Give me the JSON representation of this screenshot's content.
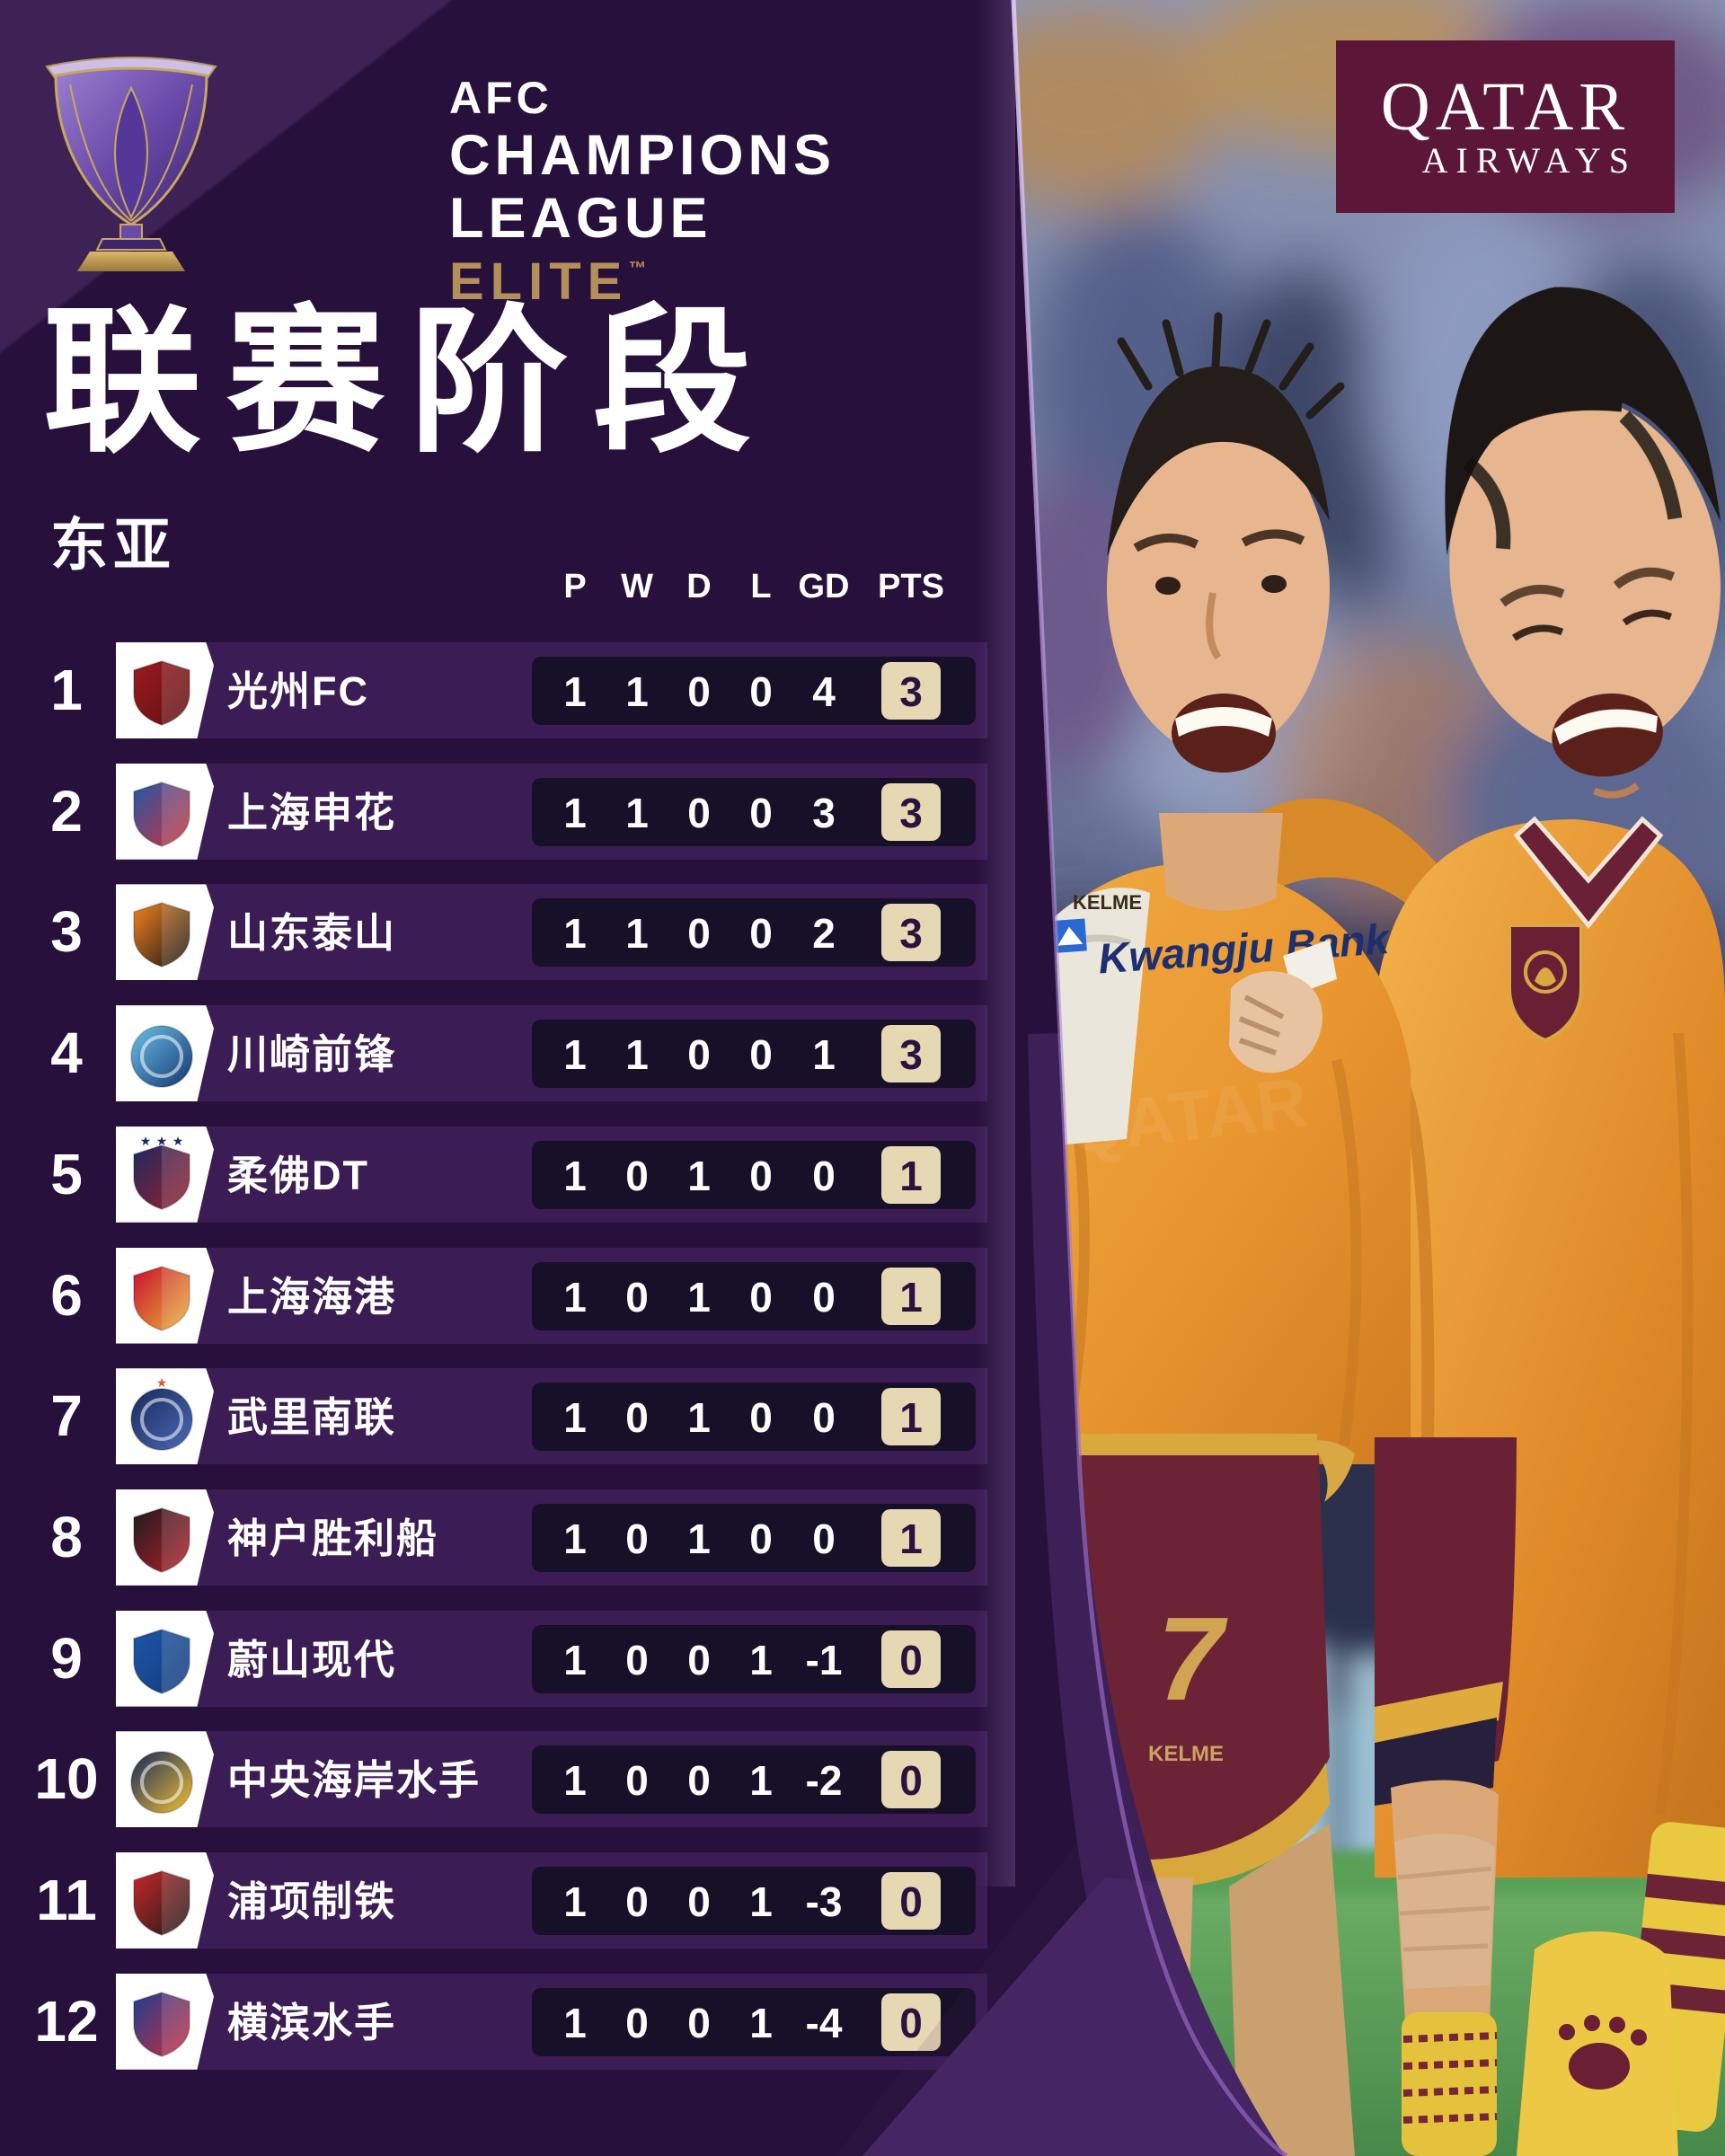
{
  "brand": {
    "line1": "AFC",
    "line2": "CHAMPIONS",
    "line3": "LEAGUE",
    "tier": "ELITE",
    "tm": "™",
    "gold": "#B3905A"
  },
  "page": {
    "title": "联赛阶段",
    "region": "东亚"
  },
  "sponsor": {
    "line1": "QATAR",
    "line2": "AIRWAYS",
    "brand_color": "#5C1638"
  },
  "table": {
    "columns": {
      "p": "P",
      "w": "W",
      "d": "D",
      "l": "L",
      "gd": "GD",
      "pts": "PTS"
    },
    "rows": [
      {
        "rank": "1",
        "club": "光州FC",
        "p": "1",
        "w": "1",
        "d": "0",
        "l": "0",
        "gd": "4",
        "pts": "3",
        "shape": "shield",
        "crest": [
          "#9b1c20",
          "#5e1013"
        ],
        "stars": 0,
        "star_color": ""
      },
      {
        "rank": "2",
        "club": "上海申花",
        "p": "1",
        "w": "1",
        "d": "0",
        "l": "0",
        "gd": "3",
        "pts": "3",
        "shape": "shield",
        "crest": [
          "#2457a8",
          "#cf3339"
        ],
        "stars": 0,
        "star_color": ""
      },
      {
        "rank": "3",
        "club": "山东泰山",
        "p": "1",
        "w": "1",
        "d": "0",
        "l": "0",
        "gd": "2",
        "pts": "3",
        "shape": "shield",
        "crest": [
          "#f28321",
          "#141414"
        ],
        "stars": 0,
        "star_color": ""
      },
      {
        "rank": "4",
        "club": "川崎前锋",
        "p": "1",
        "w": "1",
        "d": "0",
        "l": "0",
        "gd": "1",
        "pts": "3",
        "shape": "circle",
        "crest": [
          "#6cc0e8",
          "#12366e"
        ],
        "stars": 0,
        "star_color": ""
      },
      {
        "rank": "5",
        "club": "柔佛DT",
        "p": "1",
        "w": "0",
        "d": "1",
        "l": "0",
        "gd": "0",
        "pts": "1",
        "shape": "shield",
        "crest": [
          "#1b2960",
          "#9d1f2d"
        ],
        "stars": 3,
        "star_color": "#1b2960"
      },
      {
        "rank": "6",
        "club": "上海海港",
        "p": "1",
        "w": "0",
        "d": "1",
        "l": "0",
        "gd": "0",
        "pts": "1",
        "shape": "shield",
        "crest": [
          "#c8102e",
          "#eab53a"
        ],
        "stars": 0,
        "star_color": ""
      },
      {
        "rank": "7",
        "club": "武里南联",
        "p": "1",
        "w": "0",
        "d": "1",
        "l": "0",
        "gd": "0",
        "pts": "1",
        "shape": "circle",
        "crest": [
          "#1a2a5c",
          "#4a6ab8"
        ],
        "stars": 1,
        "star_color": "#e8542a"
      },
      {
        "rank": "8",
        "club": "神户胜利船",
        "p": "1",
        "w": "0",
        "d": "1",
        "l": "0",
        "gd": "0",
        "pts": "1",
        "shape": "shield",
        "crest": [
          "#1d1d1d",
          "#b51e2c"
        ],
        "stars": 0,
        "star_color": ""
      },
      {
        "rank": "9",
        "club": "蔚山现代",
        "p": "1",
        "w": "0",
        "d": "0",
        "l": "1",
        "gd": "-1",
        "pts": "0",
        "shape": "shield",
        "crest": [
          "#1e56a8",
          "#123a7a"
        ],
        "stars": 0,
        "star_color": ""
      },
      {
        "rank": "10",
        "club": "中央海岸水手",
        "p": "1",
        "w": "0",
        "d": "0",
        "l": "1",
        "gd": "-2",
        "pts": "0",
        "shape": "circle",
        "crest": [
          "#14275e",
          "#f2c230"
        ],
        "stars": 0,
        "star_color": ""
      },
      {
        "rank": "11",
        "club": "浦项制铁",
        "p": "1",
        "w": "0",
        "d": "0",
        "l": "1",
        "gd": "-3",
        "pts": "0",
        "shape": "shield",
        "crest": [
          "#c62828",
          "#1a1a1a"
        ],
        "stars": 0,
        "star_color": ""
      },
      {
        "rank": "12",
        "club": "横滨水手",
        "p": "1",
        "w": "0",
        "d": "0",
        "l": "1",
        "gd": "-4",
        "pts": "0",
        "shape": "shield",
        "crest": [
          "#1c3f94",
          "#cf2e3a"
        ],
        "stars": 0,
        "star_color": ""
      }
    ],
    "band_color": "#3C1C54",
    "panel_color": "#171029",
    "points_badge_color": "#E7D8B4"
  },
  "photo": {
    "jersey_sponsor": "Kwangju Bank",
    "jersey_brand": "KELME",
    "shorts_number": "7",
    "watermark": "QATAR"
  }
}
